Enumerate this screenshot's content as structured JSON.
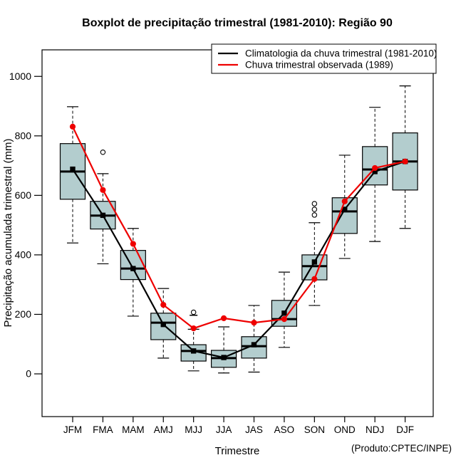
{
  "title": "Boxplot de precipitação trimestral (1981-2010): Região 90",
  "footer_note": "(Produto:CPTEC/INPE)",
  "legend": {
    "items": [
      {
        "label": "Climatologia da chuva trimestral (1981-2010)",
        "color": "#000000"
      },
      {
        "label": "Chuva trimestral observada (1989)",
        "color": "#ee0000"
      }
    ]
  },
  "colors": {
    "box_fill": "#b3cdce",
    "box_border": "#000000",
    "climatology_line": "#000000",
    "observed_line": "#ee0000",
    "background": "#ffffff"
  },
  "chart_data": {
    "type": "boxplot",
    "title": "Boxplot de precipitação trimestral (1981-2010): Região 90",
    "xlabel": "Trimestre",
    "ylabel": "Precipitação acumulada trimestral (mm)",
    "ylim": [
      -145,
      1090
    ],
    "yticks": [
      0,
      200,
      400,
      600,
      800,
      1000
    ],
    "grid": false,
    "legend_position": "top-right",
    "categories": [
      "JFM",
      "FMA",
      "MAM",
      "AMJ",
      "MJJ",
      "JJA",
      "JAS",
      "ASO",
      "SON",
      "OND",
      "NDJ",
      "DJF"
    ],
    "boxes": [
      {
        "category": "JFM",
        "whisker_low": 440,
        "q1": 587,
        "median": 680,
        "q3": 774,
        "whisker_high": 898,
        "outliers": [],
        "outlier_ticks": []
      },
      {
        "category": "FMA",
        "whisker_low": 370,
        "q1": 487,
        "median": 532,
        "q3": 580,
        "whisker_high": 673,
        "outliers": [
          745
        ],
        "outlier_ticks": []
      },
      {
        "category": "MAM",
        "whisker_low": 194,
        "q1": 317,
        "median": 354,
        "q3": 415,
        "whisker_high": 489,
        "outliers": [],
        "outlier_ticks": []
      },
      {
        "category": "AMJ",
        "whisker_low": 53,
        "q1": 115,
        "median": 172,
        "q3": 204,
        "whisker_high": 287,
        "outliers": [],
        "outlier_ticks": []
      },
      {
        "category": "MJJ",
        "whisker_low": 10,
        "q1": 43,
        "median": 77,
        "q3": 98,
        "whisker_high": 150,
        "outliers": [
          207
        ],
        "outlier_ticks": [
          197
        ]
      },
      {
        "category": "JJA",
        "whisker_low": 3,
        "q1": 22,
        "median": 53,
        "q3": 79,
        "whisker_high": 158,
        "outliers": [],
        "outlier_ticks": []
      },
      {
        "category": "JAS",
        "whisker_low": 6,
        "q1": 53,
        "median": 93,
        "q3": 125,
        "whisker_high": 230,
        "outliers": [],
        "outlier_ticks": []
      },
      {
        "category": "ASO",
        "whisker_low": 89,
        "q1": 160,
        "median": 184,
        "q3": 247,
        "whisker_high": 342,
        "outliers": [],
        "outlier_ticks": []
      },
      {
        "category": "SON",
        "whisker_low": 230,
        "q1": 316,
        "median": 362,
        "q3": 400,
        "whisker_high": 508,
        "outliers": [
          534,
          553,
          572
        ],
        "outlier_ticks": []
      },
      {
        "category": "OND",
        "whisker_low": 388,
        "q1": 472,
        "median": 546,
        "q3": 592,
        "whisker_high": 735,
        "outliers": [],
        "outlier_ticks": []
      },
      {
        "category": "NDJ",
        "whisker_low": 445,
        "q1": 635,
        "median": 687,
        "q3": 764,
        "whisker_high": 896,
        "outliers": [],
        "outlier_ticks": []
      },
      {
        "category": "DJF",
        "whisker_low": 489,
        "q1": 618,
        "median": 714,
        "q3": 810,
        "whisker_high": 968,
        "outliers": [],
        "outlier_ticks": []
      }
    ],
    "series": [
      {
        "name": "Climatologia da chuva trimestral (1981-2010)",
        "marker": "square",
        "color": "#000000",
        "values": [
          688,
          533,
          354,
          166,
          77,
          55,
          98,
          204,
          376,
          553,
          680,
          714
        ]
      },
      {
        "name": "Chuva trimestral observada (1989)",
        "marker": "circle",
        "color": "#ee0000",
        "values": [
          831,
          618,
          437,
          232,
          153,
          187,
          172,
          184,
          319,
          580,
          692,
          714
        ]
      }
    ]
  }
}
